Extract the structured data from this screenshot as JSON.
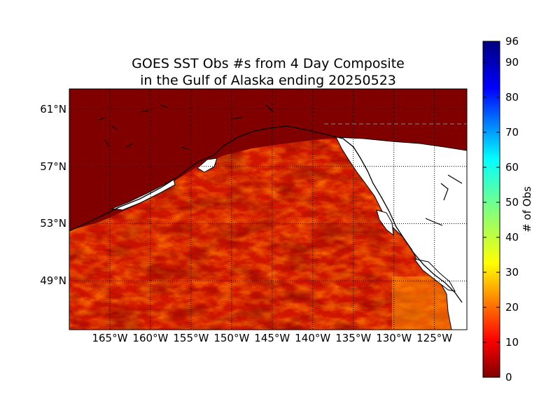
{
  "title": {
    "line1": "GOES SST Obs #s from 4 Day Composite",
    "line2": "in the Gulf of Alaska ending 20250523"
  },
  "map": {
    "region": "Gulf of Alaska",
    "projection": "cylindrical",
    "lon_range": [
      -170,
      -121
    ],
    "lat_range": [
      45.6,
      62.4
    ],
    "latitude_labels": [
      "61°N",
      "57°N",
      "53°N",
      "49°N"
    ],
    "latitude_values": [
      61,
      57,
      53,
      49
    ],
    "longitude_labels": [
      "165°W",
      "160°W",
      "155°W",
      "150°W",
      "145°W",
      "140°W",
      "135°W",
      "130°W",
      "125°W"
    ],
    "longitude_values": [
      -165,
      -160,
      -155,
      -150,
      -145,
      -140,
      -135,
      -130,
      -125
    ],
    "grid": "dotted",
    "land_color": "#ffffff",
    "no_data_color": "#800000",
    "coastline_color": "#000000",
    "border_color": "#888888"
  },
  "colorbar": {
    "label": "# of Obs",
    "min": 0,
    "max": 96,
    "ticks": [
      "0",
      "10",
      "20",
      "30",
      "40",
      "50",
      "60",
      "70",
      "80",
      "90",
      "96"
    ],
    "tick_values": [
      0,
      10,
      20,
      30,
      40,
      50,
      60,
      70,
      80,
      90,
      96
    ],
    "colormap": "jet",
    "stops": [
      "#00007f",
      "#0000ff",
      "#007fff",
      "#00ffff",
      "#7fff7f",
      "#ffff00",
      "#ff7f00",
      "#ff0000",
      "#7f0000"
    ]
  },
  "colors": {
    "field_low": "#8a0000",
    "field_mid": "#d81a00",
    "field_high": "#ff5a00",
    "field_hot": "#ff9a00"
  }
}
